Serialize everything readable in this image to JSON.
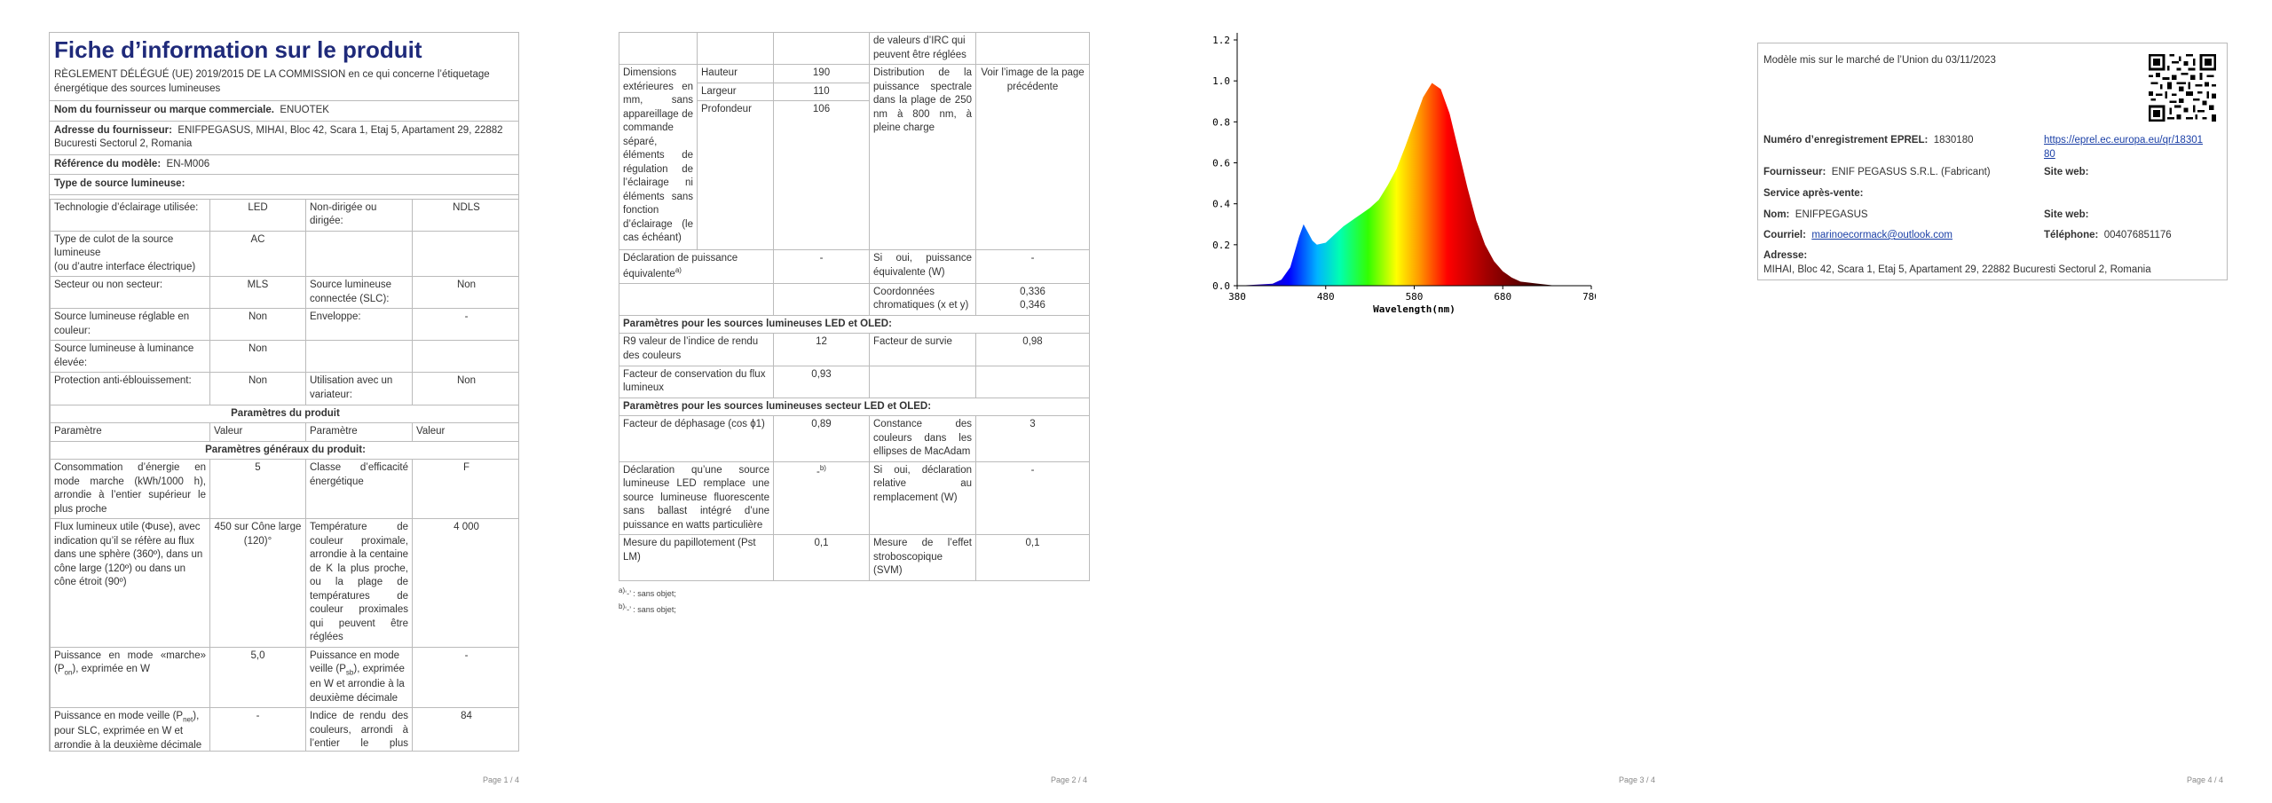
{
  "page1": {
    "title": "Fiche d’information sur le produit",
    "regulation": "RÈGLEMENT DÉLÉGUÉ (UE) 2019/2015 DE LA COMMISSION en ce qui concerne l’étiquetage énergétique des sources lumineuses",
    "supplier_name_label": "Nom du fournisseur ou marque commerciale.",
    "supplier_name": "ENUOTEK",
    "supplier_address_label": "Adresse du fournisseur:",
    "supplier_address": "ENIFPEGASUS, MIHAI, Bloc 42, Scara 1, Etaj 5, Apartament 29, 22882 Bucuresti Sectorul 2, Romania",
    "model_ref_label": "Référence du modèle:",
    "model_ref": "EN-M006",
    "light_type_heading": "Type de source lumineuse:",
    "rows": {
      "tech_label": "Technologie d’éclairage utilisée:",
      "tech_value": "LED",
      "directional_label": "Non-dirigée ou dirigée:",
      "directional_value": "NDLS",
      "cap_label": "Type de culot de la source lumineuse",
      "cap_label2": "(ou d’autre interface électrique)",
      "cap_value": "AC",
      "mains_label": "Secteur ou non secteur:",
      "mains_value": "MLS",
      "connected_label": "Source lumineuse connectée (SLC):",
      "connected_value": "Non",
      "colour_label": "Source lumineuse réglable en couleur:",
      "colour_value": "Non",
      "envelope_label": "Enveloppe:",
      "envelope_value": "-",
      "high_lum_label": "Source lumineuse à luminance élevée:",
      "high_lum_value": "Non",
      "glare_label": "Protection anti-éblouissement:",
      "glare_value": "Non",
      "dimmer_label": "Utilisation avec un variateur:",
      "dimmer_value": "Non"
    },
    "product_params_heading": "Paramètres du produit",
    "col_param": "Paramètre",
    "col_value": "Valeur",
    "general_params_heading": "Paramètres généraux du produit:",
    "params": {
      "energy_label": "Consommation d’énergie en mode marche (kWh/1000 h), arrondie à l’entier supérieur le plus proche",
      "energy_value": "5",
      "class_label": "Classe d’efficacité énergétique",
      "class_value": "F",
      "flux_label": "Flux lumineux utile (Φuse), avec indication qu’il se réfère au flux dans une sphère (360º), dans un cône large (120º) ou dans un cône étroit (90º)",
      "flux_value": "450 sur Cône large (120)°",
      "cct_label": "Température de couleur proximale, arrondie à la centaine de K la plus proche, ou la plage de températures de couleur proximales qui peuvent être réglées",
      "cct_value": "4 000",
      "power_on_label_a": "Puissance en mode «marche» (P",
      "power_on_sub": "on",
      "power_on_label_b": "), exprimée en W",
      "power_on_value": "5,0",
      "standby_label_a": "Puissance en mode veille (P",
      "standby_sub": "sb",
      "standby_label_b": "), exprimée en W et arrondie à la deuxième décimale",
      "standby_value": "-",
      "networked_label_a": "Puissance en mode veille (P",
      "networked_sub": "net",
      "networked_label_b": "), pour SLC, exprimée en W et arrondie à la deuxième décimale",
      "networked_value": "-",
      "cri_label": "Indice de rendu des couleurs, arrondi à l’entier le plus proche, ou la plage",
      "cri_value": "84"
    },
    "page_num": "Page 1 / 4"
  },
  "page2": {
    "cri_cont": "de valeurs d’IRC qui peuvent être réglées",
    "dims_label": "Dimensions extérieures en mm, sans appareillage de commande séparé, éléments de régulation de l’éclairage ni éléments sans fonction d’éclairage (le cas échéant)",
    "height_label": "Hauteur",
    "height_value": "190",
    "width_label": "Largeur",
    "width_value": "110",
    "depth_label": "Profondeur",
    "depth_value": "106",
    "spd_label": "Distribution de la puissance spectrale dans la plage de 250 nm à 800 nm, à pleine charge",
    "spd_value": "Voir l’image de la page précédente",
    "equiv_label": "Déclaration de puissance équivalente",
    "equiv_sup": "a)",
    "equiv_value": "-",
    "equiv_w_label": "Si oui, puissance équivalente (W)",
    "equiv_w_value": "-",
    "chroma_label": "Coordonnées chromatiques (x et y)",
    "chroma_x": "0,336",
    "chroma_y": "0,346",
    "led_heading": "Paramètres pour les sources lumineuses LED et OLED:",
    "r9_label": "R9 valeur de l’indice de rendu des couleurs",
    "r9_value": "12",
    "survival_label": "Facteur de survie",
    "survival_value": "0,98",
    "maint_label": "Facteur de conservation du flux lumineux",
    "maint_value": "0,93",
    "mains_heading": "Paramètres pour les sources lumineuses secteur LED et OLED:",
    "pf_label": "Facteur de déphasage (cos ϕ1)",
    "pf_value": "0,89",
    "macadam_label": "Constance des couleurs dans les ellipses de MacAdam",
    "macadam_value": "3",
    "replace_label": "Déclaration qu’une source lumineuse LED remplace une source lumineuse fluorescente sans ballast intégré d’une puissance en watts particulière",
    "replace_value": "-",
    "replace_sup": "b)",
    "replace_w_label": "Si oui, déclaration relative au remplacement (W)",
    "replace_w_value": "-",
    "pst_label": "Mesure du papillotement (Pst LM)",
    "pst_value": "0,1",
    "svm_label": "Mesure de l’effet stroboscopique (SVM)",
    "svm_value": "0,1",
    "foot_a_sup": "a)",
    "foot_a": "‘-’ : sans objet;",
    "foot_b_sup": "b)",
    "foot_b": "‘-’ : sans objet;",
    "page_num": "Page 2 / 4"
  },
  "page3": {
    "page_num": "Page 3 / 4",
    "chart_data": {
      "type": "area",
      "xlabel": "Wavelength(nm)",
      "ylabel": "",
      "xlim": [
        380,
        780
      ],
      "ylim": [
        0,
        1.2
      ],
      "xticks": [
        "380",
        "480",
        "580",
        "680",
        "780"
      ],
      "yticks": [
        "0.0",
        "0.2",
        "0.4",
        "0.6",
        "0.8",
        "1.0",
        "1.2"
      ],
      "grid": false,
      "series": [
        {
          "x": [
            380,
            420,
            430,
            440,
            450,
            455,
            460,
            465,
            470,
            480,
            490,
            500,
            510,
            520,
            530,
            540,
            550,
            560,
            570,
            580,
            590,
            600,
            610,
            620,
            630,
            640,
            650,
            660,
            670,
            680,
            690,
            700,
            720,
            740,
            760,
            780
          ],
          "values": [
            0.0,
            0.01,
            0.03,
            0.09,
            0.24,
            0.3,
            0.26,
            0.22,
            0.2,
            0.21,
            0.25,
            0.29,
            0.32,
            0.35,
            0.38,
            0.42,
            0.49,
            0.57,
            0.68,
            0.8,
            0.92,
            0.99,
            0.96,
            0.84,
            0.66,
            0.48,
            0.32,
            0.2,
            0.12,
            0.07,
            0.04,
            0.02,
            0.01,
            0.0,
            0.0,
            0.0
          ]
        }
      ]
    }
  },
  "page4": {
    "market_date": "Modèle mis sur le marché de l’Union du 03/11/2023",
    "eprel_label": "Numéro d’enregistrement EPREL:",
    "eprel_value": "1830180",
    "eprel_url": "https://eprel.ec.europa.eu/qr/1830180",
    "supplier_label": "Fournisseur:",
    "supplier_value": "ENIF PEGASUS S.R.L. (Fabricant)",
    "website_label": "Site web:",
    "service_label": "Service après-vente:",
    "name_label": "Nom:",
    "name_value": "ENIFPEGASUS",
    "website2_label": "Site web:",
    "email_label": "Courriel:",
    "email_value": "marinoecormack@outlook.com",
    "phone_label": "Téléphone:",
    "phone_value": "004076851176",
    "address_label": "Adresse:",
    "address_value": "MIHAI, Bloc 42, Scara 1, Etaj 5, Apartament 29, 22882 Bucuresti Sectorul 2, Romania",
    "page_num": "Page 4 / 4"
  }
}
